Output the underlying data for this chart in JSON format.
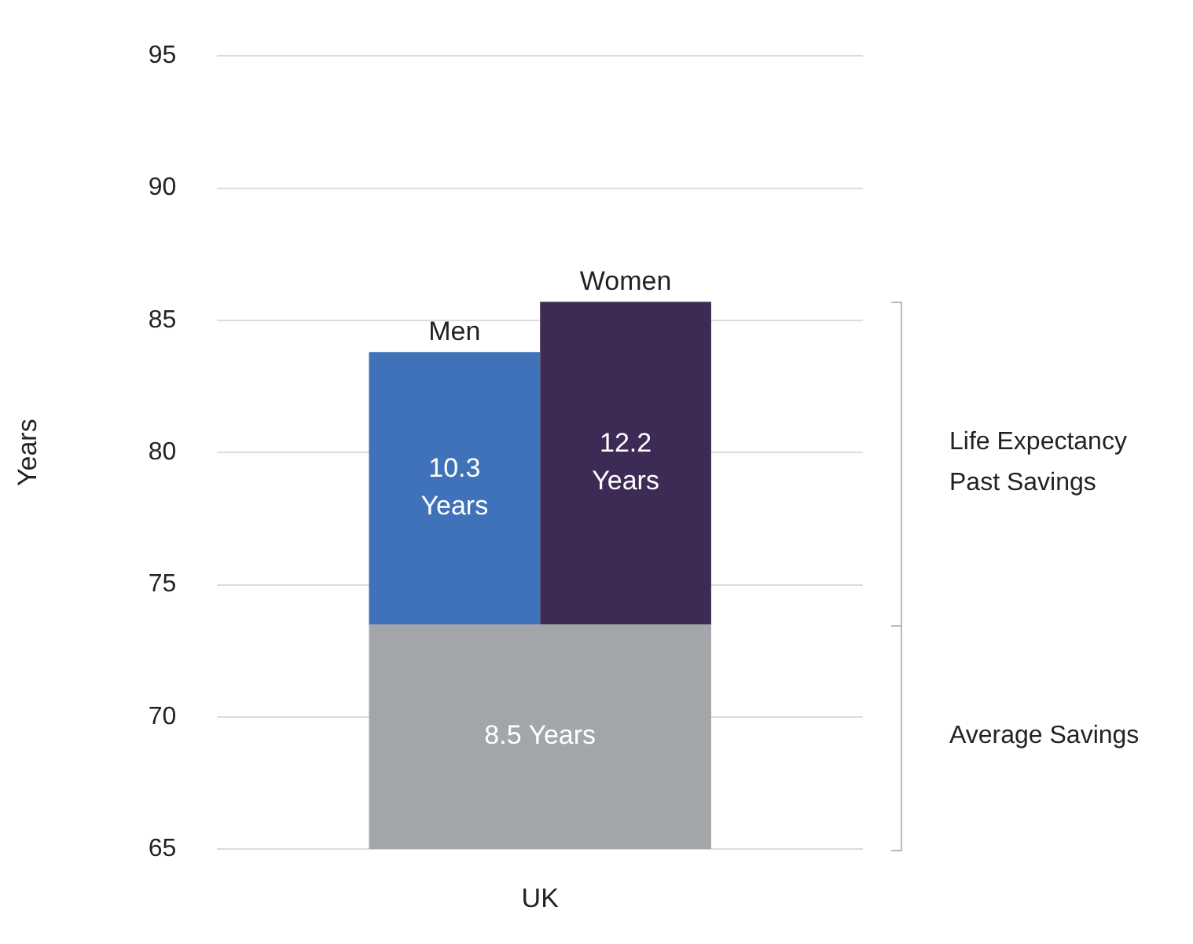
{
  "chart_data": {
    "type": "bar",
    "categories": [
      "UK"
    ],
    "ylabel": "Years",
    "ylim": [
      65,
      95
    ],
    "yticks": [
      65,
      70,
      75,
      80,
      85,
      90,
      95
    ],
    "grid": "y",
    "series": [
      {
        "color": "#a3a6a9",
        "base": [
          65
        ],
        "values": [
          8.5
        ],
        "value_labels": [
          "8.5 Years"
        ]
      },
      {
        "name": "Men",
        "color": "#3f72b8",
        "base": [
          73.5
        ],
        "values": [
          10.3
        ],
        "value_labels": [
          "10.3 Years"
        ]
      },
      {
        "name": "Women",
        "color": "#3d2b55",
        "base": [
          73.5
        ],
        "values": [
          12.2
        ],
        "value_labels": [
          "12.2 Years"
        ]
      }
    ],
    "annotations": [
      "Life Expectancy Past Savings",
      "Average Savings"
    ]
  }
}
